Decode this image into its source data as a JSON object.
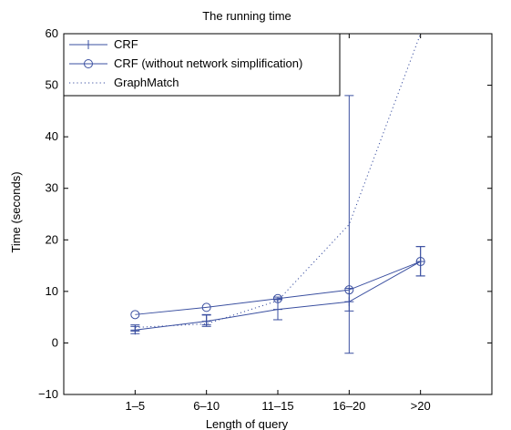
{
  "chart_data": {
    "type": "line",
    "title": "The running time",
    "xlabel": "Length of query",
    "ylabel": "Time (seconds)",
    "categories": [
      "1–5",
      "6–10",
      "11–15",
      "16–20",
      ">20"
    ],
    "ylim": [
      -10,
      60
    ],
    "yticks": [
      -10,
      0,
      10,
      20,
      30,
      40,
      50,
      60
    ],
    "grid": false,
    "legend_position": "top-left",
    "series": [
      {
        "name": "CRF",
        "style": "solid",
        "marker": "plus",
        "color": "#3a4fa0",
        "values": [
          2.5,
          4.2,
          6.5,
          8.0,
          15.8
        ],
        "error": [
          [
            1.8,
            3.2
          ],
          [
            3.2,
            5.4
          ],
          [
            4.5,
            8.5
          ],
          [
            -2,
            48
          ],
          [
            13.0,
            18.7
          ]
        ]
      },
      {
        "name": "CRF (without network simplification)",
        "style": "solid",
        "marker": "circle",
        "color": "#3a4fa0",
        "values": [
          5.5,
          6.9,
          8.6,
          10.3,
          15.8
        ],
        "error": [
          [
            2.3,
            3.5
          ],
          [
            3.5,
            5.5
          ],
          [
            8.4,
            8.9
          ],
          [
            6.2,
            10.6
          ],
          [
            13.0,
            18.7
          ]
        ]
      },
      {
        "name": "GraphMatch",
        "style": "dotted",
        "marker": "none",
        "color": "#3a4fa0",
        "values": [
          3.0,
          3.7,
          8.2,
          23.0,
          60.0
        ]
      }
    ]
  }
}
